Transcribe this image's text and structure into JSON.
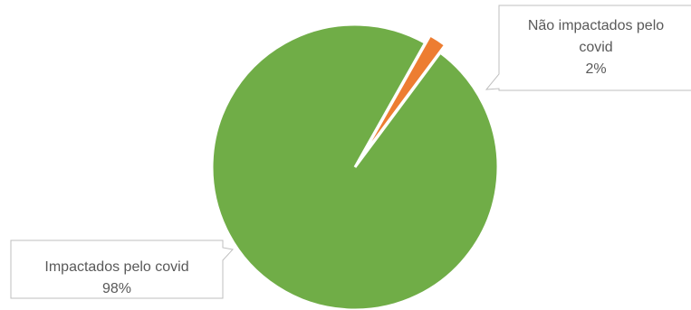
{
  "chart_data": {
    "type": "pie",
    "title": "",
    "slices": [
      {
        "label_lines": [
          "Impactados pelo covid"
        ],
        "percent_label": "98%",
        "value": 98,
        "color": "#70ad47"
      },
      {
        "label_lines": [
          "Não impactados pelo",
          "covid"
        ],
        "percent_label": "2%",
        "value": 2,
        "color": "#ed7d31"
      }
    ],
    "legend": "none",
    "data_labels": "callouts"
  }
}
